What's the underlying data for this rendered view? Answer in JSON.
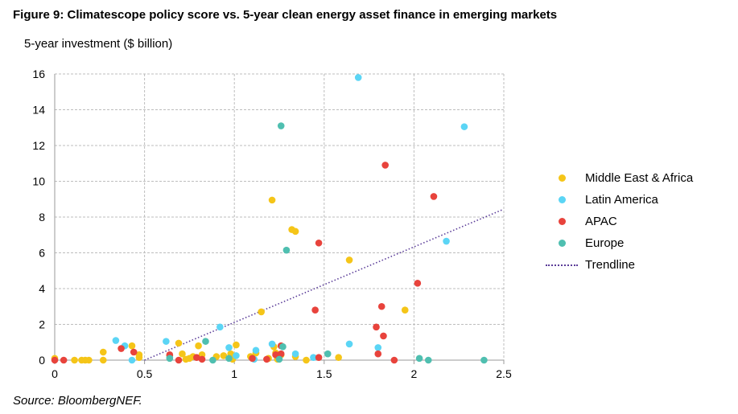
{
  "title": "Figure 9: Climatescope policy score vs. 5-year clean energy asset finance in emerging markets",
  "source": "Source: BloombergNEF.",
  "chart_data": {
    "type": "scatter",
    "title": "Figure 9: Climatescope policy score vs. 5-year clean energy asset finance in emerging markets",
    "xlabel": "",
    "ylabel": "5-year investment ($ billion)",
    "xlim": [
      0,
      2.5
    ],
    "ylim": [
      0,
      16
    ],
    "x_ticks": [
      "0",
      "0.5",
      "1",
      "1.5",
      "2",
      "2.5"
    ],
    "y_ticks": [
      "0",
      "2",
      "4",
      "6",
      "8",
      "10",
      "12",
      "14",
      "16"
    ],
    "grid": true,
    "legend_position": "right",
    "series": [
      {
        "name": "Middle East & Africa",
        "color": "#f5c518",
        "points": [
          [
            0.0,
            0.1
          ],
          [
            0.11,
            0.0
          ],
          [
            0.15,
            0.0
          ],
          [
            0.17,
            0.0
          ],
          [
            0.19,
            0.0
          ],
          [
            0.27,
            0.0
          ],
          [
            0.27,
            0.45
          ],
          [
            0.43,
            0.8
          ],
          [
            0.47,
            0.15
          ],
          [
            0.47,
            0.3
          ],
          [
            0.64,
            0.25
          ],
          [
            0.69,
            0.95
          ],
          [
            0.71,
            0.35
          ],
          [
            0.73,
            0.05
          ],
          [
            0.75,
            0.1
          ],
          [
            0.77,
            0.2
          ],
          [
            0.8,
            0.8
          ],
          [
            0.82,
            0.3
          ],
          [
            0.9,
            0.2
          ],
          [
            0.94,
            0.25
          ],
          [
            0.98,
            0.25
          ],
          [
            0.98,
            0.35
          ],
          [
            0.99,
            0.05
          ],
          [
            1.01,
            0.85
          ],
          [
            1.09,
            0.2
          ],
          [
            1.12,
            0.4
          ],
          [
            1.15,
            2.7
          ],
          [
            1.19,
            0.1
          ],
          [
            1.21,
            8.95
          ],
          [
            1.22,
            0.75
          ],
          [
            1.23,
            0.4
          ],
          [
            1.24,
            0.05
          ],
          [
            1.26,
            0.3
          ],
          [
            1.32,
            7.3
          ],
          [
            1.34,
            7.2
          ],
          [
            1.34,
            0.2
          ],
          [
            1.4,
            0.0
          ],
          [
            1.58,
            0.15
          ],
          [
            1.64,
            5.6
          ],
          [
            1.95,
            2.8
          ]
        ]
      },
      {
        "name": "Latin America",
        "color": "#5bd5f5",
        "points": [
          [
            0.34,
            1.1
          ],
          [
            0.39,
            0.8
          ],
          [
            0.43,
            0.0
          ],
          [
            0.62,
            1.05
          ],
          [
            0.64,
            0.15
          ],
          [
            0.92,
            1.85
          ],
          [
            0.97,
            0.7
          ],
          [
            1.01,
            0.25
          ],
          [
            1.11,
            0.05
          ],
          [
            1.12,
            0.55
          ],
          [
            1.21,
            0.9
          ],
          [
            1.34,
            0.35
          ],
          [
            1.44,
            0.15
          ],
          [
            1.64,
            0.9
          ],
          [
            1.69,
            15.8
          ],
          [
            1.8,
            0.7
          ],
          [
            2.18,
            6.65
          ],
          [
            2.28,
            13.05
          ]
        ]
      },
      {
        "name": "APAC",
        "color": "#e8433c",
        "points": [
          [
            0.0,
            0.0
          ],
          [
            0.05,
            0.0
          ],
          [
            0.37,
            0.65
          ],
          [
            0.44,
            0.45
          ],
          [
            0.64,
            0.3
          ],
          [
            0.69,
            0.0
          ],
          [
            0.79,
            0.15
          ],
          [
            0.82,
            0.05
          ],
          [
            1.1,
            0.1
          ],
          [
            1.18,
            0.05
          ],
          [
            1.23,
            0.3
          ],
          [
            1.26,
            0.35
          ],
          [
            1.26,
            0.8
          ],
          [
            1.45,
            2.8
          ],
          [
            1.47,
            6.55
          ],
          [
            1.47,
            0.15
          ],
          [
            1.79,
            1.85
          ],
          [
            1.8,
            0.35
          ],
          [
            1.82,
            3.0
          ],
          [
            1.83,
            1.35
          ],
          [
            1.84,
            10.9
          ],
          [
            1.89,
            0.0
          ],
          [
            2.02,
            4.3
          ],
          [
            2.11,
            9.15
          ]
        ]
      },
      {
        "name": "Europe",
        "color": "#4fbfb0",
        "points": [
          [
            0.64,
            0.1
          ],
          [
            0.84,
            1.05
          ],
          [
            0.88,
            0.0
          ],
          [
            0.97,
            0.1
          ],
          [
            1.25,
            0.05
          ],
          [
            1.26,
            13.1
          ],
          [
            1.27,
            0.75
          ],
          [
            1.29,
            6.15
          ],
          [
            1.52,
            0.35
          ],
          [
            2.03,
            0.1
          ],
          [
            2.08,
            0.0
          ],
          [
            2.39,
            0.0
          ]
        ]
      }
    ],
    "trendline": {
      "name": "Trendline",
      "color": "#5b3d99",
      "style": "dotted",
      "from": [
        0.5,
        0.0
      ],
      "to": [
        2.49,
        8.4
      ]
    }
  }
}
